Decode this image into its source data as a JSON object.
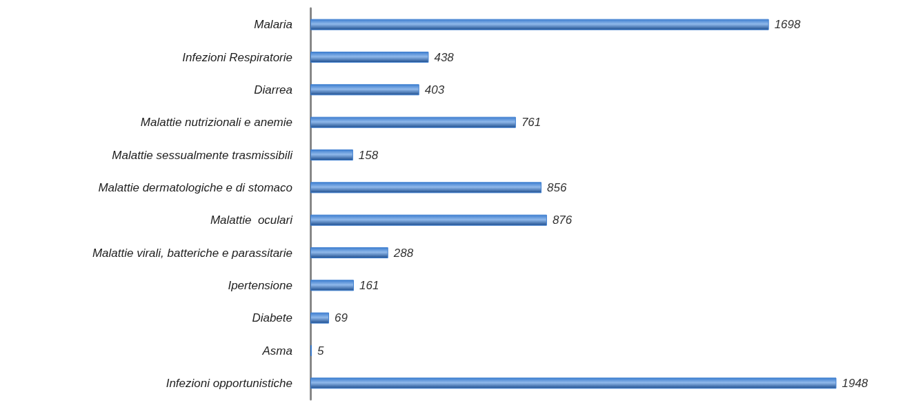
{
  "chart_data": {
    "type": "bar",
    "orientation": "horizontal",
    "categories": [
      "Malaria",
      "Infezioni Respiratorie",
      "Diarrea",
      "Malattie nutrizionali e anemie",
      "Malattie sessualmente trasmissibili",
      "Malattie dermatologiche e di stomaco",
      "Malattie  oculari",
      "Malattie virali, batteriche e parassitarie",
      "Ipertensione",
      "Diabete",
      "Asma",
      "Infezioni opportunistiche"
    ],
    "values": [
      1698,
      438,
      403,
      761,
      158,
      856,
      876,
      288,
      161,
      69,
      5,
      1948
    ],
    "color": "#3f7fd0",
    "data_labels": true
  }
}
